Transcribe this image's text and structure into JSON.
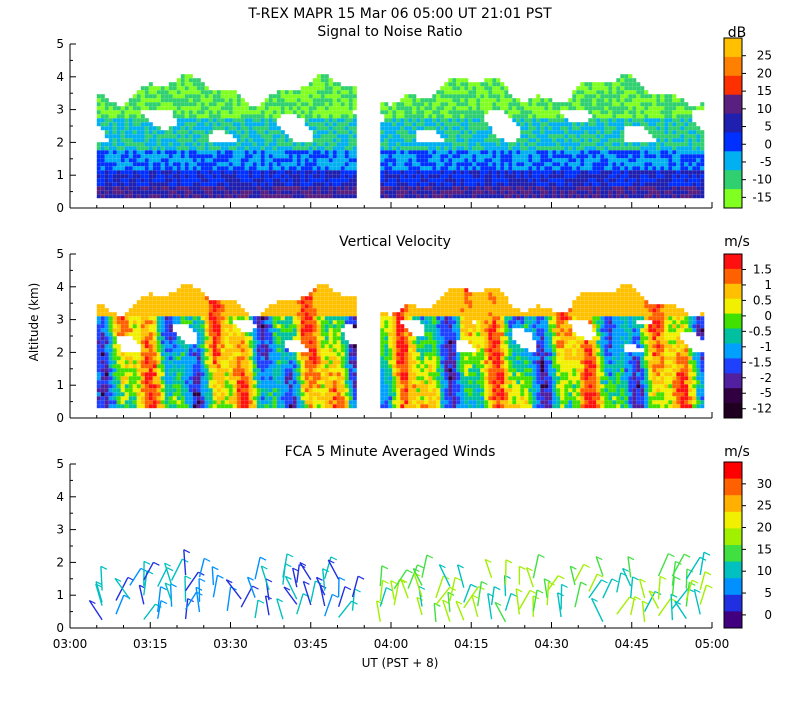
{
  "figure": {
    "title": "T-REX   MAPR 15 Mar 06   05:00 UT   21:01   PST",
    "xlabel": "UT  (PST + 8)",
    "ylabel": "Altitude (km)"
  },
  "chart_data": [
    {
      "type": "heatmap",
      "title": "Signal to Noise Ratio",
      "unit": "dB",
      "xlim": [
        0,
        120
      ],
      "ylim": [
        0,
        5
      ],
      "yticks": [
        "0",
        "1",
        "2",
        "3",
        "4",
        "5"
      ],
      "xticks": [
        "03:00",
        "03:15",
        "03:30",
        "03:45",
        "04:00",
        "04:15",
        "04:30",
        "04:45",
        "05:00"
      ],
      "colorbar": {
        "labels": [
          "25",
          "20",
          "15",
          "10",
          "5",
          "0",
          "-5",
          "-10",
          "-15"
        ],
        "colors": [
          "#ffc000",
          "#ff8000",
          "#ff3000",
          "#5a2080",
          "#2020b0",
          "#0030ff",
          "#00b0f0",
          "#30d070",
          "#80ff20"
        ]
      },
      "data_segments": [
        {
          "x_start_min": 5,
          "x_end_min": 53
        },
        {
          "x_start_min": 58,
          "x_end_min": 118
        }
      ],
      "data_bottom_km": 0.3,
      "data_top_km": 3.8
    },
    {
      "type": "heatmap",
      "title": "Vertical Velocity",
      "unit": "m/s",
      "xlim": [
        0,
        120
      ],
      "ylim": [
        0,
        5
      ],
      "yticks": [
        "0",
        "1",
        "2",
        "3",
        "4",
        "5"
      ],
      "xticks": [
        "03:00",
        "03:15",
        "03:30",
        "03:45",
        "04:00",
        "04:15",
        "04:30",
        "04:45",
        "05:00"
      ],
      "colorbar": {
        "labels": [
          "1.5",
          "1",
          "0.5",
          "0",
          "-0.5",
          "-1",
          "-1.5",
          "-2",
          "-5",
          "-12"
        ],
        "colors": [
          "#ff1010",
          "#ff6000",
          "#ffc000",
          "#f0f000",
          "#40e000",
          "#00c0a0",
          "#00a0ff",
          "#2040ff",
          "#5020a0",
          "#300040",
          "#200020"
        ]
      },
      "data_segments": [
        {
          "x_start_min": 5,
          "x_end_min": 53
        },
        {
          "x_start_min": 58,
          "x_end_min": 118
        }
      ],
      "data_bottom_km": 0.3,
      "data_top_km": 3.8
    },
    {
      "type": "scatter",
      "title": "FCA 5 Minute Averaged Winds",
      "unit": "m/s",
      "xlim": [
        0,
        120
      ],
      "ylim": [
        0,
        5
      ],
      "yticks": [
        "0",
        "1",
        "2",
        "3",
        "4",
        "5"
      ],
      "xticks": [
        "03:00",
        "03:15",
        "03:30",
        "03:45",
        "04:00",
        "04:15",
        "04:30",
        "04:45",
        "05:00"
      ],
      "colorbar": {
        "labels": [
          "30",
          "25",
          "20",
          "15",
          "10",
          "5",
          "0"
        ],
        "colors": [
          "#ff0000",
          "#ff6000",
          "#ffb000",
          "#f0f000",
          "#a0f000",
          "#40e040",
          "#00c0c0",
          "#0090ff",
          "#2030e0",
          "#400080"
        ]
      }
    }
  ]
}
